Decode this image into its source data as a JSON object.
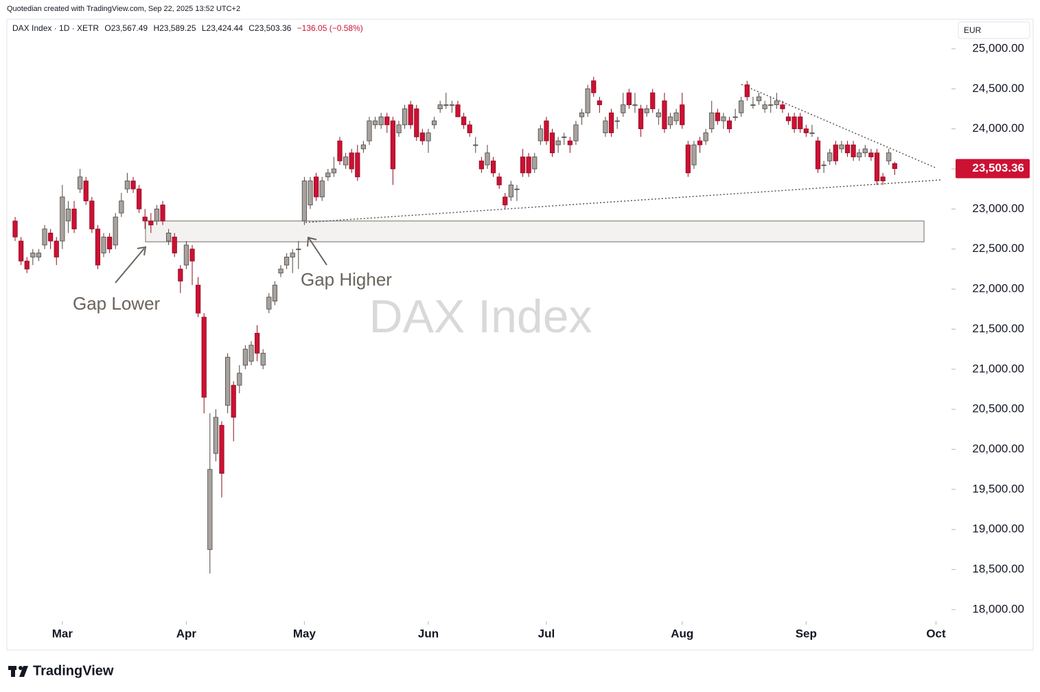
{
  "credit": "Quotedian created with TradingView.com, Sep 22, 2025 13:52 UTC+2",
  "brand": "TradingView",
  "chart_data": {
    "type": "candlestick",
    "title": "DAX Index",
    "symbol": "DAX Index · 1D · XETR",
    "currency": "EUR",
    "header_ohlc": {
      "open": "O23,567.49",
      "high": "H23,589.25",
      "low": "L23,424.44",
      "close": "C23,503.36",
      "change": "−136.05 (−0.58%)"
    },
    "annotations": [
      "Gap Lower",
      "Gap Higher"
    ],
    "gap_zone": [
      22590,
      22850
    ],
    "last_price": {
      "value": 23503.36,
      "label": "23,503.36"
    },
    "up_color": "#a8a29e",
    "down_color": "#cc1133",
    "ylim": [
      17854,
      25351
    ],
    "yticks": [
      {
        "value": 18000,
        "label": "18,000.00"
      },
      {
        "value": 18500,
        "label": "18,500.00"
      },
      {
        "value": 19000,
        "label": "19,000.00"
      },
      {
        "value": 19500,
        "label": "19,500.00"
      },
      {
        "value": 20000,
        "label": "20,000.00"
      },
      {
        "value": 20500,
        "label": "20,500.00"
      },
      {
        "value": 21000,
        "label": "21,000.00"
      },
      {
        "value": 21500,
        "label": "21,500.00"
      },
      {
        "value": 22000,
        "label": "22,000.00"
      },
      {
        "value": 22500,
        "label": "22,500.00"
      },
      {
        "value": 23000,
        "label": "23,000.00"
      },
      {
        "value": 23500,
        "label": "23,500.00"
      },
      {
        "value": 24000,
        "label": "24,000.00"
      },
      {
        "value": 24500,
        "label": "24,500.00"
      },
      {
        "value": 25000,
        "label": "25,000.00"
      }
    ],
    "xlim": [
      -1.4,
      158.5
    ],
    "xticks": [
      {
        "value": 8,
        "label": "Mar"
      },
      {
        "value": 29,
        "label": "Apr"
      },
      {
        "value": 49,
        "label": "May"
      },
      {
        "value": 70,
        "label": "Jun"
      },
      {
        "value": 90,
        "label": "Jul"
      },
      {
        "value": 113,
        "label": "Aug"
      },
      {
        "value": 134,
        "label": "Sep"
      },
      {
        "value": 156,
        "label": "Oct"
      }
    ],
    "candles": [
      [
        22850,
        22900,
        22600,
        22650
      ],
      [
        22600,
        22650,
        22300,
        22350
      ],
      [
        22350,
        22400,
        22200,
        22250
      ],
      [
        22400,
        22500,
        22300,
        22450
      ],
      [
        22400,
        22500,
        22350,
        22450
      ],
      [
        22550,
        22800,
        22500,
        22750
      ],
      [
        22700,
        22750,
        22500,
        22600
      ],
      [
        22600,
        22650,
        22300,
        22400
      ],
      [
        22600,
        23300,
        22500,
        23150
      ],
      [
        22850,
        23100,
        22700,
        23000
      ],
      [
        23000,
        23100,
        22700,
        22750
      ],
      [
        23250,
        23500,
        23200,
        23400
      ],
      [
        23350,
        23400,
        23050,
        23100
      ],
      [
        23100,
        23150,
        22700,
        22750
      ],
      [
        22750,
        22800,
        22250,
        22300
      ],
      [
        22450,
        22700,
        22400,
        22650
      ],
      [
        22650,
        22700,
        22450,
        22500
      ],
      [
        22550,
        22950,
        22500,
        22900
      ],
      [
        22950,
        23200,
        22900,
        23100
      ],
      [
        23250,
        23450,
        23200,
        23350
      ],
      [
        23350,
        23400,
        23200,
        23250
      ],
      [
        23250,
        23300,
        22950,
        23000
      ],
      [
        22900,
        23000,
        22750,
        22850
      ],
      [
        22850,
        22950,
        22700,
        22800
      ],
      [
        22850,
        23050,
        22800,
        23000
      ],
      [
        23050,
        23100,
        22800,
        22850
      ],
      [
        22600,
        22750,
        22550,
        22700
      ],
      [
        22650,
        22700,
        22400,
        22450
      ],
      [
        22250,
        22300,
        21950,
        22100
      ],
      [
        22300,
        22600,
        22250,
        22550
      ],
      [
        22500,
        22550,
        22050,
        22350
      ],
      [
        22050,
        22150,
        21650,
        21700
      ],
      [
        21650,
        21700,
        20450,
        20650
      ],
      [
        18750,
        20450,
        18450,
        19750
      ],
      [
        19950,
        20500,
        19850,
        20400
      ],
      [
        20300,
        20350,
        19400,
        19700
      ],
      [
        20550,
        21200,
        20450,
        21150
      ],
      [
        20800,
        20850,
        20100,
        20400
      ],
      [
        20800,
        21050,
        20700,
        20950
      ],
      [
        21050,
        21300,
        21000,
        21250
      ],
      [
        21100,
        21350,
        21050,
        21300
      ],
      [
        21450,
        21550,
        21100,
        21200
      ],
      [
        21050,
        21250,
        21000,
        21200
      ],
      [
        21750,
        21950,
        21700,
        21900
      ],
      [
        21850,
        22100,
        21800,
        22050
      ],
      [
        22200,
        22300,
        22150,
        22250
      ],
      [
        22300,
        22450,
        22250,
        22400
      ],
      [
        22400,
        22500,
        22200,
        22450
      ],
      [
        22500,
        22600,
        22250,
        22500
      ],
      [
        22850,
        23400,
        22800,
        23350
      ],
      [
        23050,
        23400,
        23000,
        23350
      ],
      [
        23400,
        23450,
        23100,
        23150
      ],
      [
        23150,
        23400,
        23100,
        23350
      ],
      [
        23400,
        23500,
        23350,
        23450
      ],
      [
        23450,
        23650,
        23400,
        23500
      ],
      [
        23850,
        23900,
        23550,
        23600
      ],
      [
        23550,
        23700,
        23500,
        23650
      ],
      [
        23700,
        23750,
        23450,
        23500
      ],
      [
        23700,
        23800,
        23350,
        23400
      ],
      [
        23750,
        23850,
        23700,
        23800
      ],
      [
        23850,
        24150,
        23800,
        24100
      ],
      [
        24050,
        24150,
        24000,
        24100
      ],
      [
        24050,
        24200,
        24000,
        24150
      ],
      [
        24150,
        24200,
        23950,
        24050
      ],
      [
        24100,
        24150,
        23300,
        23500
      ],
      [
        23950,
        24100,
        23900,
        24050
      ],
      [
        24050,
        24300,
        24000,
        24250
      ],
      [
        24300,
        24350,
        24000,
        24050
      ],
      [
        24250,
        24300,
        23850,
        23900
      ],
      [
        23950,
        24000,
        23800,
        23850
      ],
      [
        23850,
        24000,
        23700,
        23950
      ],
      [
        24050,
        24150,
        24000,
        24100
      ],
      [
        24250,
        24350,
        24200,
        24300
      ],
      [
        24300,
        24450,
        24250,
        24300
      ],
      [
        24300,
        24350,
        24200,
        24300
      ],
      [
        24300,
        24350,
        24150,
        24150
      ],
      [
        24150,
        24200,
        24000,
        24050
      ],
      [
        24050,
        24100,
        23900,
        23950
      ],
      [
        23800,
        23900,
        23700,
        23800
      ],
      [
        23600,
        23650,
        23450,
        23500
      ],
      [
        23550,
        23800,
        23500,
        23700
      ],
      [
        23600,
        23650,
        23400,
        23450
      ],
      [
        23400,
        23450,
        23250,
        23300
      ],
      [
        23150,
        23200,
        23000,
        23050
      ],
      [
        23150,
        23350,
        23100,
        23300
      ],
      [
        23250,
        23300,
        23100,
        23250
      ],
      [
        23650,
        23750,
        23400,
        23450
      ],
      [
        23650,
        23700,
        23400,
        23450
      ],
      [
        23500,
        23700,
        23450,
        23650
      ],
      [
        23850,
        24050,
        23800,
        24000
      ],
      [
        24100,
        24150,
        23800,
        23850
      ],
      [
        23950,
        24000,
        23650,
        23700
      ],
      [
        23800,
        23900,
        23700,
        23850
      ],
      [
        23900,
        23950,
        23800,
        23900
      ],
      [
        23850,
        23900,
        23700,
        23800
      ],
      [
        23850,
        24100,
        23800,
        24050
      ],
      [
        24150,
        24250,
        24050,
        24200
      ],
      [
        24200,
        24550,
        24150,
        24500
      ],
      [
        24600,
        24650,
        24400,
        24450
      ],
      [
        24350,
        24400,
        24200,
        24300
      ],
      [
        23950,
        24150,
        23900,
        24100
      ],
      [
        24200,
        24250,
        23900,
        23950
      ],
      [
        24100,
        24150,
        24000,
        24100
      ],
      [
        24200,
        24450,
        24150,
        24300
      ],
      [
        24450,
        24500,
        24250,
        24300
      ],
      [
        24300,
        24450,
        24200,
        24300
      ],
      [
        24250,
        24300,
        23900,
        24000
      ],
      [
        24200,
        24300,
        24150,
        24250
      ],
      [
        24450,
        24500,
        24200,
        24250
      ],
      [
        24150,
        24250,
        24050,
        24200
      ],
      [
        24350,
        24450,
        23950,
        24000
      ],
      [
        24050,
        24200,
        24000,
        24150
      ],
      [
        24100,
        24250,
        24050,
        24200
      ],
      [
        24300,
        24450,
        24000,
        24050
      ],
      [
        23800,
        23850,
        23400,
        23450
      ],
      [
        23550,
        23850,
        23500,
        23800
      ],
      [
        23850,
        23900,
        23700,
        23800
      ],
      [
        23850,
        24000,
        23800,
        23950
      ],
      [
        24000,
        24350,
        23950,
        24200
      ],
      [
        24200,
        24250,
        24050,
        24100
      ],
      [
        24100,
        24200,
        24000,
        24150
      ],
      [
        24100,
        24150,
        23950,
        24000
      ],
      [
        24150,
        24250,
        24100,
        24150
      ],
      [
        24200,
        24400,
        24150,
        24350
      ],
      [
        24550,
        24600,
        24350,
        24400
      ],
      [
        24300,
        24400,
        24250,
        24300
      ],
      [
        24350,
        24450,
        24300,
        24400
      ],
      [
        24250,
        24350,
        24200,
        24300
      ],
      [
        24300,
        24400,
        24200,
        24300
      ],
      [
        24300,
        24450,
        24250,
        24350
      ],
      [
        24300,
        24350,
        24200,
        24250
      ],
      [
        24150,
        24200,
        24050,
        24100
      ],
      [
        24150,
        24200,
        23950,
        24000
      ],
      [
        24150,
        24200,
        23950,
        24000
      ],
      [
        24000,
        24050,
        23900,
        23950
      ],
      [
        23950,
        24050,
        23900,
        23950
      ],
      [
        23850,
        23900,
        23450,
        23500
      ],
      [
        23550,
        23600,
        23450,
        23550
      ],
      [
        23600,
        23750,
        23550,
        23700
      ],
      [
        23800,
        23850,
        23550,
        23600
      ],
      [
        23750,
        23850,
        23700,
        23800
      ],
      [
        23800,
        23850,
        23650,
        23700
      ],
      [
        23800,
        23850,
        23600,
        23650
      ],
      [
        23650,
        23750,
        23600,
        23700
      ],
      [
        23700,
        23800,
        23650,
        23750
      ],
      [
        23700,
        23750,
        23600,
        23650
      ],
      [
        23700,
        23750,
        23300,
        23350
      ],
      [
        23400,
        23450,
        23300,
        23350
      ],
      [
        23600,
        23750,
        23550,
        23700
      ],
      [
        23567.49,
        23589.25,
        23424.44,
        23503.36
      ]
    ]
  }
}
